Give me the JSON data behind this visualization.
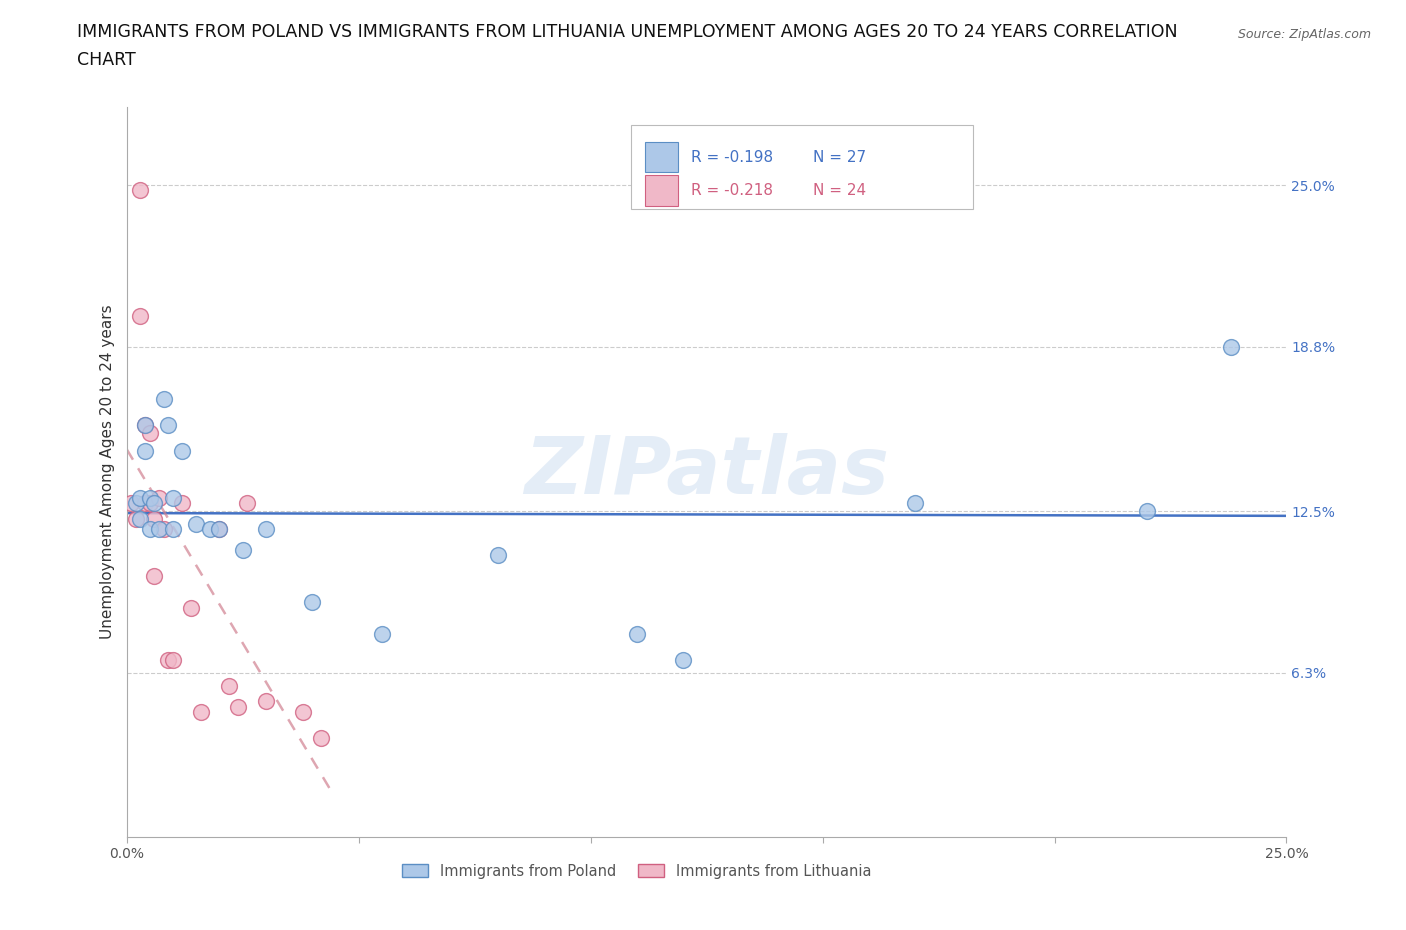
{
  "title_line1": "IMMIGRANTS FROM POLAND VS IMMIGRANTS FROM LITHUANIA UNEMPLOYMENT AMONG AGES 20 TO 24 YEARS CORRELATION",
  "title_line2": "CHART",
  "source": "Source: ZipAtlas.com",
  "ylabel": "Unemployment Among Ages 20 to 24 years",
  "xlim": [
    0,
    0.25
  ],
  "ylim": [
    0,
    0.28
  ],
  "ytick_labels_right": [
    "25.0%",
    "18.8%",
    "12.5%",
    "6.3%"
  ],
  "ytick_values_right": [
    0.25,
    0.188,
    0.125,
    0.063
  ],
  "grid_color": "#cccccc",
  "background_color": "#ffffff",
  "watermark": "ZIPatlas",
  "poland_color": "#adc8e8",
  "poland_edge_color": "#5b8ec4",
  "lithuania_color": "#f0b8c8",
  "lithuania_edge_color": "#d06080",
  "poland_label": "Immigrants from Poland",
  "lithuania_label": "Immigrants from Lithuania",
  "trend_poland_color": "#4472c4",
  "trend_lithuania_color": "#d08090",
  "poland_x": [
    0.002,
    0.003,
    0.003,
    0.004,
    0.004,
    0.005,
    0.005,
    0.006,
    0.007,
    0.008,
    0.009,
    0.01,
    0.01,
    0.012,
    0.015,
    0.018,
    0.02,
    0.025,
    0.03,
    0.04,
    0.055,
    0.08,
    0.11,
    0.17,
    0.22,
    0.238,
    0.12
  ],
  "poland_y": [
    0.128,
    0.13,
    0.122,
    0.158,
    0.148,
    0.13,
    0.118,
    0.128,
    0.118,
    0.168,
    0.158,
    0.13,
    0.118,
    0.148,
    0.12,
    0.118,
    0.118,
    0.11,
    0.118,
    0.09,
    0.078,
    0.108,
    0.078,
    0.128,
    0.125,
    0.188,
    0.068
  ],
  "lithuania_x": [
    0.001,
    0.002,
    0.003,
    0.003,
    0.004,
    0.004,
    0.005,
    0.005,
    0.006,
    0.006,
    0.007,
    0.008,
    0.009,
    0.01,
    0.012,
    0.014,
    0.016,
    0.02,
    0.022,
    0.024,
    0.026,
    0.03,
    0.038,
    0.042
  ],
  "lithuania_y": [
    0.128,
    0.122,
    0.248,
    0.2,
    0.158,
    0.128,
    0.155,
    0.128,
    0.122,
    0.1,
    0.13,
    0.118,
    0.068,
    0.068,
    0.128,
    0.088,
    0.048,
    0.118,
    0.058,
    0.05,
    0.128,
    0.052,
    0.048,
    0.038
  ],
  "title_fontsize": 12.5,
  "axis_label_fontsize": 11,
  "tick_fontsize": 10,
  "legend_fontsize": 11,
  "legend_r1": "R = -0.198",
  "legend_n1": "N = 27",
  "legend_r2": "R = -0.218",
  "legend_n2": "N = 24"
}
